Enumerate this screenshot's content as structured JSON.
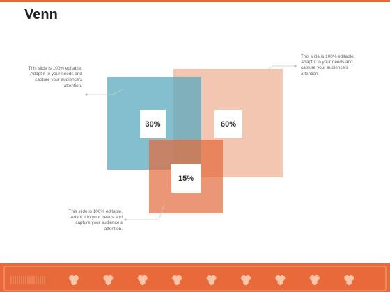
{
  "title": "Venn",
  "callouts": [
    "This slide is 100% editable. Adapt it to your needs and capture your audience’s attention.",
    "This slide is 100% editable. Adapt it to your needs and capture your audience’s attention.",
    "This slide is 100% editable. Adapt it to your needs and capture your audience’s attention."
  ],
  "labels": [
    "30%",
    "60%",
    "15%"
  ]
}
